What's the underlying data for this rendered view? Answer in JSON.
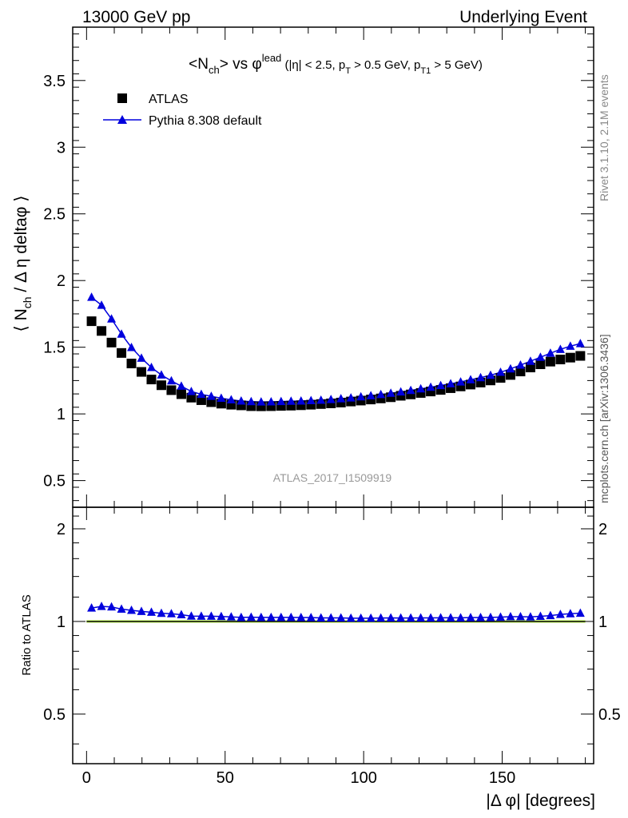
{
  "header": {
    "left": "13000 GeV pp",
    "right": "Underlying Event"
  },
  "side_labels": {
    "rivet": "Rivet 3.1.10,  2.1M events",
    "mcplots": "mcplots.cern.ch [arXiv:1306.3436]"
  },
  "analysis_label": "ATLAS_2017_I1509919",
  "colors": {
    "data": "#000000",
    "mc": "#0000dd",
    "band": "#ccff66",
    "axis": "#000000",
    "watermark": "#999999"
  },
  "chart_data": [
    {
      "type": "scatter",
      "title": "<N_ch> vs φ^lead (|η| < 2.5, p_T > 0.5 GeV, p_T1 > 5 GeV)",
      "xlabel": "",
      "ylabel": "⟨ N_ch / Δ η deltaφ ⟩",
      "xlim": [
        -5,
        183
      ],
      "ylim": [
        0.3,
        3.9
      ],
      "x_ticks": [
        0,
        50,
        100,
        150
      ],
      "y_ticks": [
        0.5,
        1,
        1.5,
        2,
        2.5,
        3,
        3.5
      ],
      "y_tick_labels": [
        "0.5",
        "1",
        "1.5",
        "2",
        "2.5",
        "3",
        "3.5"
      ],
      "legend_position": "top-left",
      "x": [
        1.8,
        5.4,
        9.0,
        12.6,
        16.2,
        19.8,
        23.4,
        27.0,
        30.6,
        34.2,
        37.8,
        41.4,
        45.0,
        48.6,
        52.2,
        55.8,
        59.4,
        63.0,
        66.6,
        70.2,
        73.8,
        77.4,
        81.0,
        84.6,
        88.2,
        91.8,
        95.4,
        99.0,
        102.6,
        106.2,
        109.8,
        113.4,
        117.0,
        120.6,
        124.2,
        127.8,
        131.4,
        135.0,
        138.6,
        142.2,
        145.8,
        149.4,
        153.0,
        156.6,
        160.2,
        163.8,
        167.4,
        171.0,
        174.6,
        178.2
      ],
      "series": [
        {
          "name": "ATLAS",
          "marker": "square",
          "values": [
            1.695,
            1.622,
            1.535,
            1.457,
            1.378,
            1.315,
            1.258,
            1.215,
            1.178,
            1.148,
            1.122,
            1.103,
            1.088,
            1.077,
            1.069,
            1.064,
            1.058,
            1.057,
            1.058,
            1.06,
            1.062,
            1.065,
            1.069,
            1.074,
            1.079,
            1.085,
            1.093,
            1.1,
            1.108,
            1.116,
            1.125,
            1.136,
            1.146,
            1.157,
            1.168,
            1.18,
            1.193,
            1.206,
            1.22,
            1.235,
            1.251,
            1.27,
            1.292,
            1.318,
            1.348,
            1.372,
            1.392,
            1.408,
            1.422,
            1.435
          ]
        },
        {
          "name": "Pythia 8.308 default",
          "marker": "triangle",
          "values": [
            1.875,
            1.815,
            1.712,
            1.598,
            1.498,
            1.418,
            1.348,
            1.292,
            1.248,
            1.208,
            1.168,
            1.147,
            1.132,
            1.118,
            1.106,
            1.097,
            1.092,
            1.09,
            1.091,
            1.093,
            1.095,
            1.097,
            1.1,
            1.103,
            1.108,
            1.114,
            1.12,
            1.128,
            1.136,
            1.145,
            1.155,
            1.165,
            1.176,
            1.188,
            1.2,
            1.213,
            1.226,
            1.24,
            1.256,
            1.272,
            1.29,
            1.312,
            1.338,
            1.366,
            1.395,
            1.425,
            1.455,
            1.484,
            1.508,
            1.527
          ]
        }
      ]
    },
    {
      "type": "scatter",
      "title": "",
      "xlabel": "|Δ φ| [degrees]",
      "ylabel": "Ratio to ATLAS",
      "xlim": [
        -5,
        183
      ],
      "ylim": [
        0.345,
        2.35
      ],
      "y_log": true,
      "x_ticks": [
        0,
        50,
        100,
        150
      ],
      "x_tick_labels": [
        "0",
        "50",
        "100",
        "150"
      ],
      "y_ticks": [
        0.5,
        1,
        2
      ],
      "y_tick_labels": [
        "0.5",
        "1",
        "2"
      ],
      "x": [
        1.8,
        5.4,
        9.0,
        12.6,
        16.2,
        19.8,
        23.4,
        27.0,
        30.6,
        34.2,
        37.8,
        41.4,
        45.0,
        48.6,
        52.2,
        55.8,
        59.4,
        63.0,
        66.6,
        70.2,
        73.8,
        77.4,
        81.0,
        84.6,
        88.2,
        91.8,
        95.4,
        99.0,
        102.6,
        106.2,
        109.8,
        113.4,
        117.0,
        120.6,
        124.2,
        127.8,
        131.4,
        135.0,
        138.6,
        142.2,
        145.8,
        149.4,
        153.0,
        156.6,
        160.2,
        163.8,
        167.4,
        171.0,
        174.6,
        178.2
      ],
      "series": [
        {
          "name": "Pythia 8.308 default",
          "marker": "triangle",
          "values": [
            1.106,
            1.119,
            1.115,
            1.097,
            1.087,
            1.078,
            1.072,
            1.063,
            1.06,
            1.052,
            1.041,
            1.04,
            1.04,
            1.038,
            1.035,
            1.031,
            1.032,
            1.031,
            1.031,
            1.031,
            1.031,
            1.03,
            1.029,
            1.027,
            1.027,
            1.027,
            1.025,
            1.025,
            1.025,
            1.026,
            1.027,
            1.026,
            1.026,
            1.027,
            1.027,
            1.028,
            1.028,
            1.028,
            1.029,
            1.03,
            1.031,
            1.033,
            1.036,
            1.036,
            1.035,
            1.039,
            1.045,
            1.054,
            1.06,
            1.064
          ]
        }
      ],
      "reference_band": [
        0.99,
        1.01
      ]
    }
  ]
}
